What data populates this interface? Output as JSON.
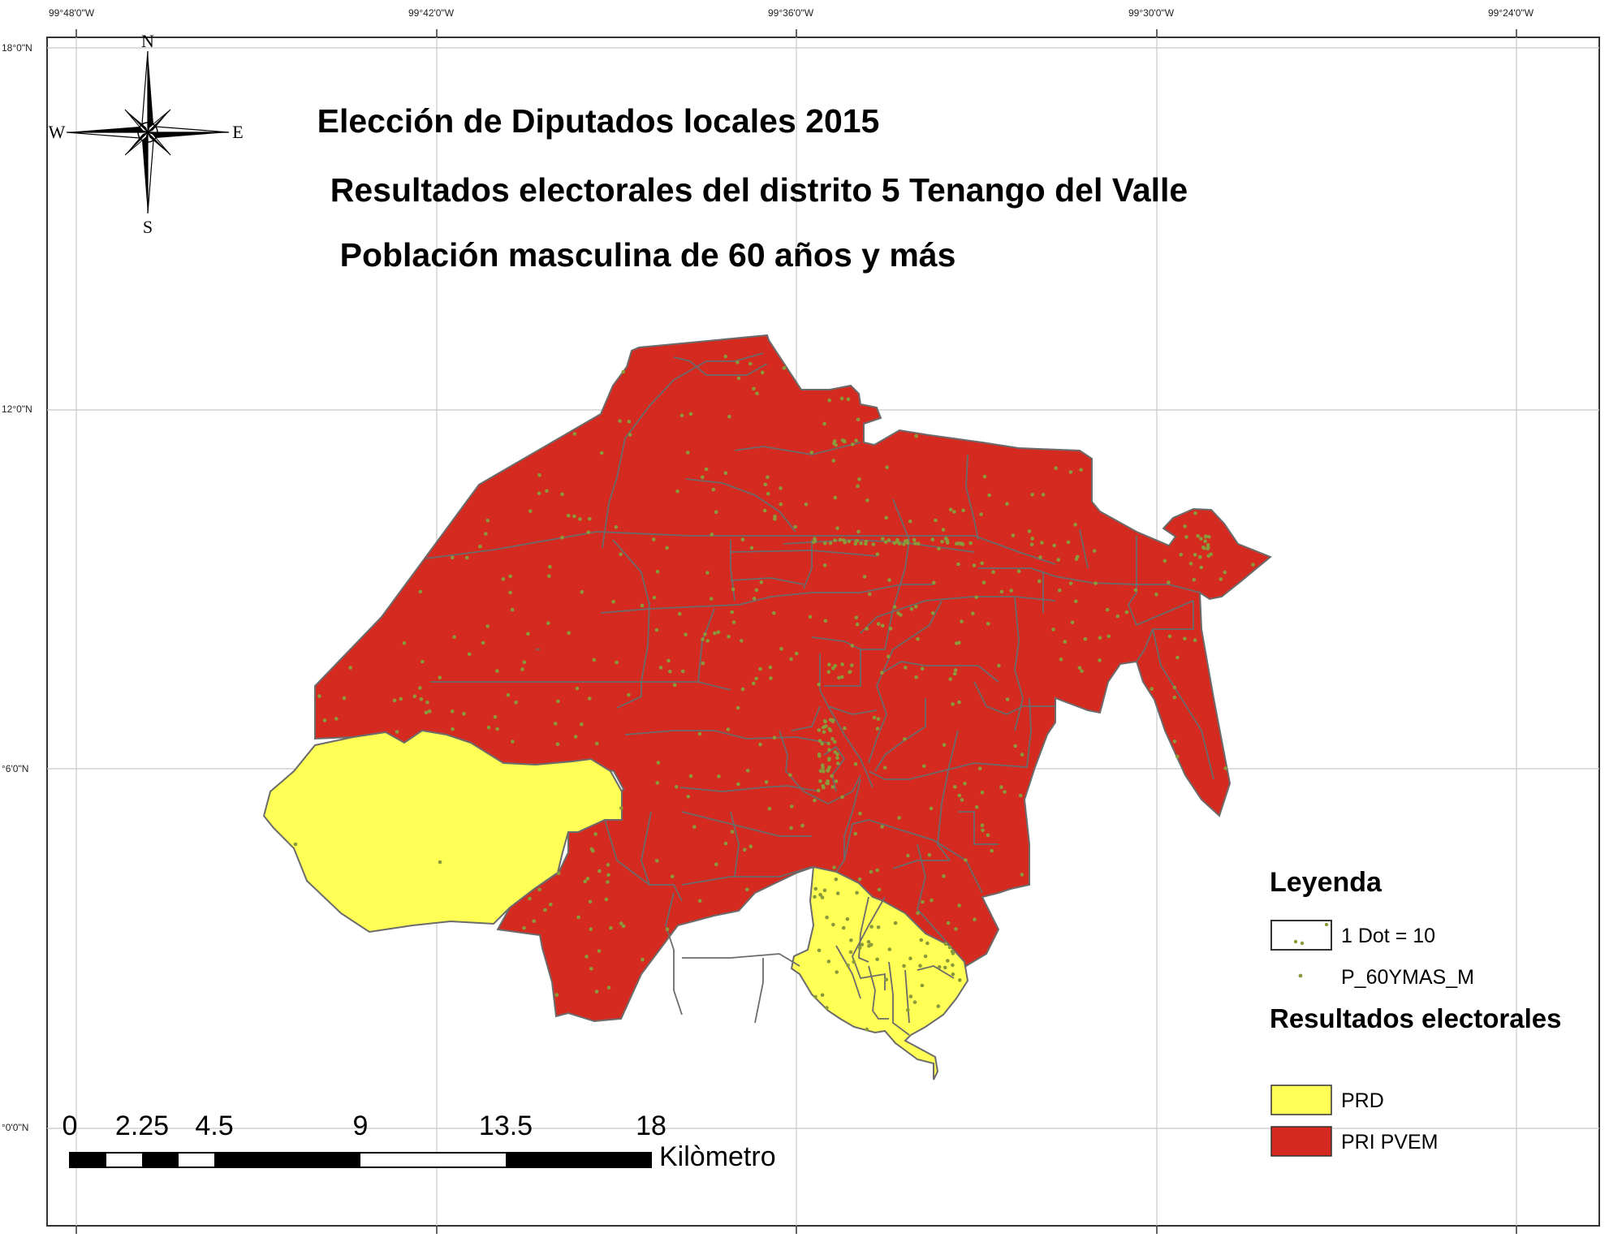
{
  "titles": {
    "line1": "Elección de Diputados locales 2015",
    "line2": "Resultados electorales del distrito 5 Tenango del Valle",
    "line3": "Población masculina de 60 años y más"
  },
  "coordinates": {
    "top": [
      "99°48'0\"W",
      "99°42'0\"W",
      "99°36'0\"W",
      "99°30'0\"W",
      "99°24'0\"W"
    ],
    "left": [
      "18°0\"N",
      "12°0\"N",
      "°6'0\"N",
      "°0'0\"N"
    ]
  },
  "compass": {
    "north": "N",
    "south": "S",
    "east": "E",
    "west": "W"
  },
  "legend": {
    "heading": "Leyenda",
    "dot_label": "1 Dot = 10",
    "dot_field": "P_60YMAS_M",
    "results_heading": "Resultados electorales",
    "items": [
      {
        "label": "PRD",
        "color": "#ffff55"
      },
      {
        "label": "PRI PVEM",
        "color": "#d42a20"
      }
    ]
  },
  "scale_bar": {
    "ticks": [
      "0",
      "2.25",
      "4.5",
      "9",
      "13.5",
      "18"
    ],
    "unit": "Kilòmetro"
  },
  "colors": {
    "pri_pvem": "#d42a20",
    "prd": "#ffff55",
    "boundary": "#6b6b6b",
    "dot": "#8a9a3a",
    "grid": "#c8c8c8"
  }
}
